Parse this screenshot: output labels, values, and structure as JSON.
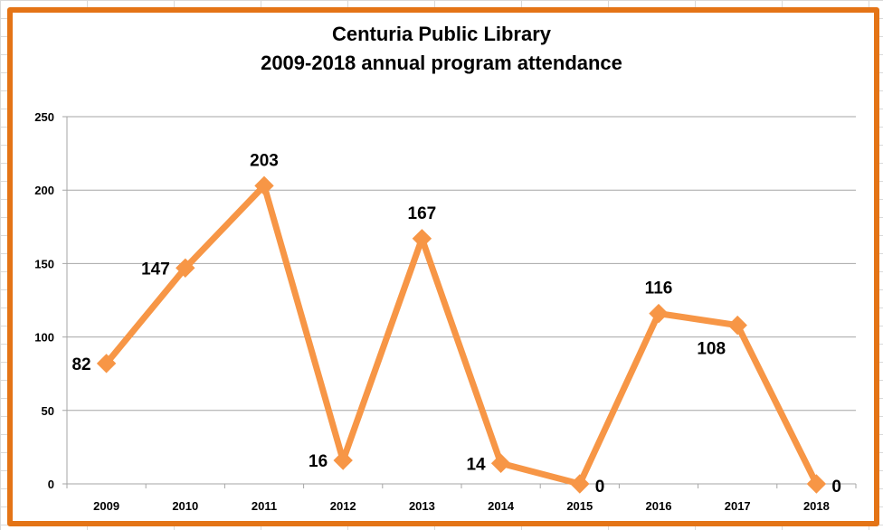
{
  "chart_data": {
    "type": "line",
    "title_line1": "Centuria Public Library",
    "title_line2": "2009-2018 annual program attendance",
    "xlabel": "",
    "ylabel": "",
    "categories": [
      "2009",
      "2010",
      "2011",
      "2012",
      "2013",
      "2014",
      "2015",
      "2016",
      "2017",
      "2018"
    ],
    "series": [
      {
        "values": [
          82,
          147,
          203,
          16,
          167,
          14,
          0,
          116,
          108,
          0
        ],
        "color": "#f79646",
        "marker": "diamond",
        "data_labels": [
          "82",
          "147",
          "203",
          "16",
          "167",
          "14",
          "0",
          "116",
          "108",
          "0"
        ]
      }
    ],
    "ylim": [
      0,
      250
    ],
    "yticks": [
      0,
      50,
      100,
      150,
      200,
      250
    ],
    "ytick_labels": [
      "0",
      "50",
      "100",
      "150",
      "200",
      "250"
    ],
    "grid": "horizontal",
    "legend": "none",
    "frame_color": "#e47416"
  }
}
